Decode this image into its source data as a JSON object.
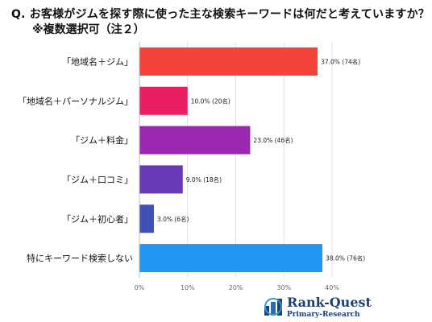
{
  "header": {
    "title": "Q. お客様がジムを探す際に使った主な検索キーワードは何だと考えていますか？",
    "subtitle": "※複数選択可（注２）"
  },
  "chart_data": {
    "type": "bar",
    "orientation": "horizontal",
    "categories": [
      "「地域名＋ジム」",
      "「地域名＋パーソナルジム」",
      "「ジム＋料金」",
      "「ジム＋口コミ」",
      "「ジム＋初心者」",
      "特にキーワード検索しない"
    ],
    "values": [
      37.0,
      10.0,
      23.0,
      9.0,
      3.0,
      38.0
    ],
    "data_labels": [
      "37.0% (74名)",
      "10.0% (20名)",
      "23.0% (46名)",
      "9.0% (18名)",
      "3.0% (6名)",
      "38.0% (76名)"
    ],
    "colors": [
      "#f4443a",
      "#e91e63",
      "#9c27b0",
      "#673ab7",
      "#3f51b5",
      "#2196f3"
    ],
    "xlim": [
      0,
      40
    ],
    "x_ticks": [
      "0%",
      "10%",
      "20%",
      "30%",
      "40%"
    ],
    "grid": true
  },
  "brand": {
    "name": "Rank-Quest",
    "tagline": "Primary-Research"
  }
}
